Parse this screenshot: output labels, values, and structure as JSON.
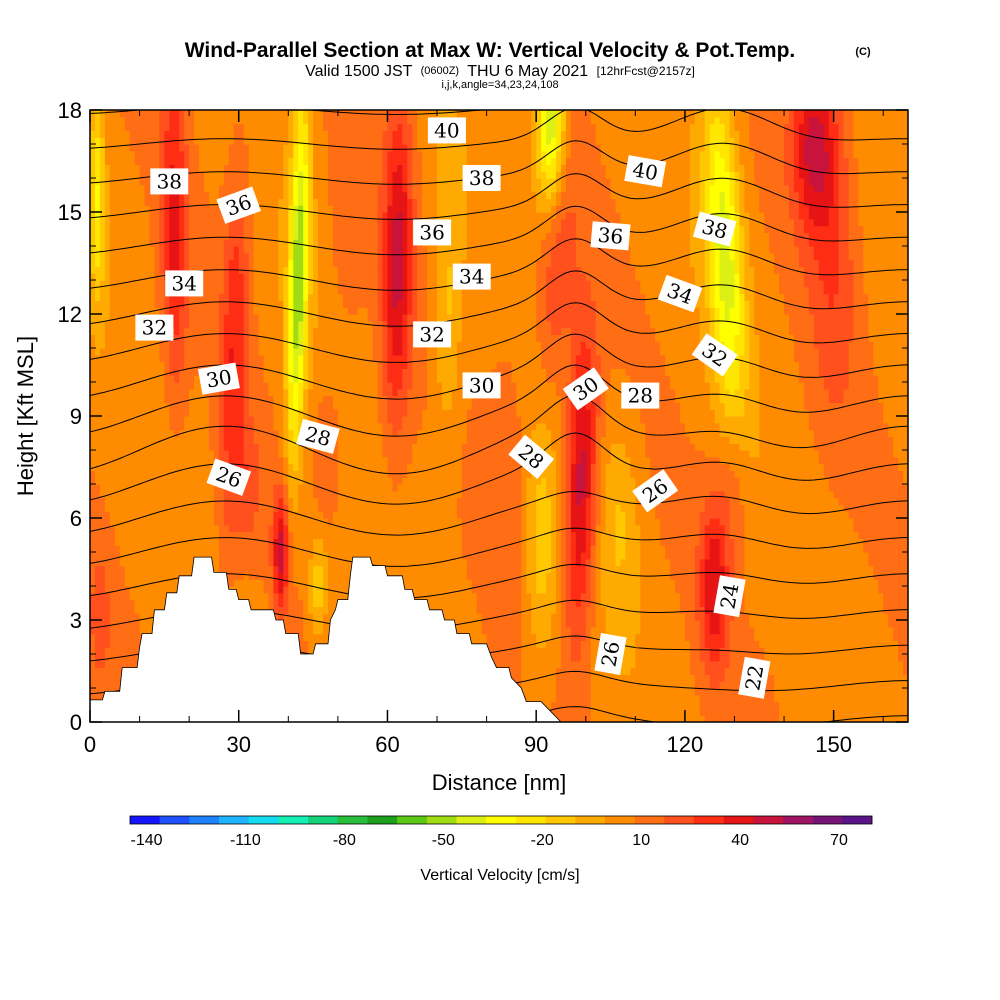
{
  "header": {
    "title": "Wind-Parallel Section at Max W: Vertical Velocity & Pot.Temp.",
    "copyright": "(C)",
    "valid_prefix": "Valid 1500 JST",
    "utc": "(0600Z)",
    "valid_date": "THU 6 May 2021",
    "forecast": "[12hrFcst@2157z]",
    "params": "i,j,k,angle=34,23,24,108"
  },
  "chart_data": {
    "type": "heatmap",
    "title": "Wind-Parallel Section at Max W: Vertical Velocity & Pot.Temp.",
    "xlabel": "Distance [nm]",
    "ylabel": "Height [Kft MSL]",
    "xlim": [
      0,
      165
    ],
    "ylim": [
      0,
      18
    ],
    "x_ticks": [
      0,
      30,
      60,
      90,
      120,
      150
    ],
    "y_ticks": [
      0,
      3,
      6,
      9,
      12,
      15,
      18
    ],
    "colorbar": {
      "label": "Vertical Velocity [cm/s]",
      "tick_labels": [
        "-140",
        "-110",
        "-80",
        "-50",
        "-20",
        "10",
        "40",
        "70"
      ],
      "tick_values": [
        -140,
        -110,
        -80,
        -50,
        -20,
        10,
        40,
        70
      ],
      "range": [
        -145,
        80
      ],
      "colors": [
        "#1414ff",
        "#1e50ff",
        "#1e82ff",
        "#1eb4ff",
        "#14dcf0",
        "#14f0b4",
        "#14d278",
        "#28be3c",
        "#1ea01e",
        "#5ac814",
        "#a0dc14",
        "#dcf014",
        "#ffff00",
        "#ffe600",
        "#ffc800",
        "#ffaa00",
        "#ff8c00",
        "#ff6e14",
        "#ff501e",
        "#ff2d14",
        "#e61414",
        "#c8143c",
        "#a01464",
        "#781478",
        "#5a1488"
      ]
    },
    "terrain": [
      [
        0,
        0.65
      ],
      [
        0.6,
        0.65
      ],
      [
        1.2,
        0.65
      ],
      [
        2.5,
        0.65
      ],
      [
        3,
        0.9
      ],
      [
        5,
        0.9
      ],
      [
        6,
        0.9
      ],
      [
        6.5,
        1.6
      ],
      [
        9.5,
        1.6
      ],
      [
        10,
        2.2
      ],
      [
        10.5,
        2.6
      ],
      [
        12.5,
        2.6
      ],
      [
        13,
        3.3
      ],
      [
        15,
        3.3
      ],
      [
        15.5,
        3.8
      ],
      [
        17.5,
        3.8
      ],
      [
        18,
        4.3
      ],
      [
        20.5,
        4.3
      ],
      [
        21,
        4.85
      ],
      [
        24.5,
        4.85
      ],
      [
        25,
        4.4
      ],
      [
        27.5,
        4.4
      ],
      [
        28,
        3.9
      ],
      [
        29.5,
        3.9
      ],
      [
        30,
        3.6
      ],
      [
        32,
        3.6
      ],
      [
        32.5,
        3.3
      ],
      [
        34,
        3.3
      ],
      [
        35,
        3.3
      ],
      [
        37,
        3.3
      ],
      [
        37.5,
        3.0
      ],
      [
        39,
        3.0
      ],
      [
        39.5,
        2.6
      ],
      [
        42,
        2.6
      ],
      [
        42.5,
        2.0
      ],
      [
        45,
        2.0
      ],
      [
        45.5,
        2.3
      ],
      [
        48,
        2.3
      ],
      [
        48.5,
        3.0
      ],
      [
        49.5,
        3.3
      ],
      [
        50,
        3.6
      ],
      [
        52,
        3.6
      ],
      [
        52.5,
        4.3
      ],
      [
        53,
        4.85
      ],
      [
        56.5,
        4.85
      ],
      [
        57,
        4.6
      ],
      [
        59.5,
        4.6
      ],
      [
        60,
        4.3
      ],
      [
        63,
        4.3
      ],
      [
        63.5,
        3.9
      ],
      [
        65,
        3.9
      ],
      [
        65.5,
        3.6
      ],
      [
        68,
        3.6
      ],
      [
        68.5,
        3.3
      ],
      [
        71,
        3.3
      ],
      [
        71.5,
        3.0
      ],
      [
        73.5,
        3.0
      ],
      [
        74,
        2.6
      ],
      [
        76.5,
        2.6
      ],
      [
        77,
        2.3
      ],
      [
        80,
        2.3
      ],
      [
        81,
        1.9
      ],
      [
        82,
        1.6
      ],
      [
        84.5,
        1.6
      ],
      [
        85,
        1.3
      ],
      [
        87,
        1.0
      ],
      [
        88,
        0.6
      ],
      [
        91,
        0.6
      ],
      [
        93,
        0.3
      ],
      [
        95,
        0.0
      ],
      [
        165,
        0.0
      ]
    ],
    "w_features": [
      {
        "x": 17,
        "y": 14.5,
        "sx": 2.6,
        "sy": 5.0,
        "w": 30,
        "tilt": -0.05
      },
      {
        "x": 29,
        "y": 11.0,
        "sx": 2.6,
        "sy": 6.0,
        "w": 26,
        "tilt": 0.2
      },
      {
        "x": 38.5,
        "y": 5.0,
        "sx": 1.6,
        "sy": 1.8,
        "w": 40
      },
      {
        "x": 32,
        "y": 7.0,
        "sx": 2.4,
        "sy": 2.0,
        "w": 14
      },
      {
        "x": 42,
        "y": 13.0,
        "sx": 2.0,
        "sy": 5.5,
        "w": -55,
        "tilt": 0.18
      },
      {
        "x": 46,
        "y": 4.0,
        "sx": 2.0,
        "sy": 1.5,
        "w": -25
      },
      {
        "x": 48,
        "y": 8.0,
        "sx": 2.5,
        "sy": 2.0,
        "w": 15
      },
      {
        "x": 62,
        "y": 13.5,
        "sx": 3.0,
        "sy": 5.0,
        "w": 38,
        "tilt": 0.1
      },
      {
        "x": 72,
        "y": 12.0,
        "sx": 3.0,
        "sy": 4.0,
        "w": -18
      },
      {
        "x": 52,
        "y": 14.0,
        "sx": 4.0,
        "sy": 3.0,
        "w": 8
      },
      {
        "x": 99,
        "y": 7.0,
        "sx": 3.2,
        "sy": 4.5,
        "w": 46,
        "tilt": 0.15
      },
      {
        "x": 94,
        "y": 13.5,
        "sx": 3.5,
        "sy": 4.0,
        "w": 20,
        "tilt": 0.4
      },
      {
        "x": 91,
        "y": 5.0,
        "sx": 3.5,
        "sy": 3.5,
        "w": -20
      },
      {
        "x": 107,
        "y": 6.0,
        "sx": 4.0,
        "sy": 3.0,
        "w": -14
      },
      {
        "x": 93,
        "y": 17.5,
        "sx": 3.0,
        "sy": 2.5,
        "w": -55
      },
      {
        "x": 126,
        "y": 4.0,
        "sx": 3.0,
        "sy": 2.5,
        "w": 35
      },
      {
        "x": 130,
        "y": 7.0,
        "sx": 3.0,
        "sy": 2.0,
        "w": 12
      },
      {
        "x": 128,
        "y": 14.0,
        "sx": 3.6,
        "sy": 5.0,
        "w": -45,
        "tilt": -0.35
      },
      {
        "x": 146,
        "y": 17.0,
        "sx": 4.5,
        "sy": 2.5,
        "w": 38
      },
      {
        "x": 150,
        "y": 14.0,
        "sx": 5.0,
        "sy": 5.0,
        "w": 18
      },
      {
        "x": 1.5,
        "y": 15.5,
        "sx": 1.5,
        "sy": 3.0,
        "w": -30
      },
      {
        "x": 2,
        "y": 3.0,
        "sx": 2.0,
        "sy": 2.0,
        "w": 15
      },
      {
        "x": 84,
        "y": 8.0,
        "sx": 4.0,
        "sy": 4.0,
        "w": 10
      },
      {
        "x": 140,
        "y": 3.0,
        "sx": 6.0,
        "sy": 2.5,
        "w": 2
      }
    ],
    "theta_contours": {
      "levels_from": 20,
      "levels_to": 44,
      "step": 1,
      "base_theta": 21.0,
      "lapse_per_kft": 1.0,
      "labels": [
        {
          "text": "38",
          "x": 16,
          "y": 15.9,
          "angle": 0
        },
        {
          "text": "36",
          "x": 30,
          "y": 15.2,
          "angle": -20
        },
        {
          "text": "34",
          "x": 19,
          "y": 12.9,
          "angle": 0
        },
        {
          "text": "32",
          "x": 13,
          "y": 11.6,
          "angle": 0
        },
        {
          "text": "30",
          "x": 26,
          "y": 10.1,
          "angle": -10
        },
        {
          "text": "28",
          "x": 46,
          "y": 8.4,
          "angle": 15
        },
        {
          "text": "26",
          "x": 28,
          "y": 7.2,
          "angle": 20
        },
        {
          "text": "40",
          "x": 72,
          "y": 17.4,
          "angle": 0
        },
        {
          "text": "38",
          "x": 79,
          "y": 16.0,
          "angle": 0
        },
        {
          "text": "36",
          "x": 69,
          "y": 14.4,
          "angle": 0
        },
        {
          "text": "34",
          "x": 77,
          "y": 13.1,
          "angle": 0
        },
        {
          "text": "32",
          "x": 69,
          "y": 11.4,
          "angle": 0
        },
        {
          "text": "30",
          "x": 79,
          "y": 9.9,
          "angle": 0
        },
        {
          "text": "28",
          "x": 89,
          "y": 7.8,
          "angle": 40
        },
        {
          "text": "30",
          "x": 100,
          "y": 9.8,
          "angle": -35
        },
        {
          "text": "28",
          "x": 111,
          "y": 9.6,
          "angle": 0
        },
        {
          "text": "36",
          "x": 105,
          "y": 14.3,
          "angle": 5
        },
        {
          "text": "40",
          "x": 112,
          "y": 16.2,
          "angle": 10
        },
        {
          "text": "38",
          "x": 126,
          "y": 14.5,
          "angle": 15
        },
        {
          "text": "34",
          "x": 119,
          "y": 12.6,
          "angle": 20
        },
        {
          "text": "32",
          "x": 126,
          "y": 10.8,
          "angle": 35
        },
        {
          "text": "26",
          "x": 114,
          "y": 6.8,
          "angle": -35
        },
        {
          "text": "26",
          "x": 105,
          "y": 2.0,
          "angle": -80
        },
        {
          "text": "24",
          "x": 129,
          "y": 3.7,
          "angle": -80
        },
        {
          "text": "22",
          "x": 134,
          "y": 1.3,
          "angle": -80
        }
      ]
    }
  }
}
